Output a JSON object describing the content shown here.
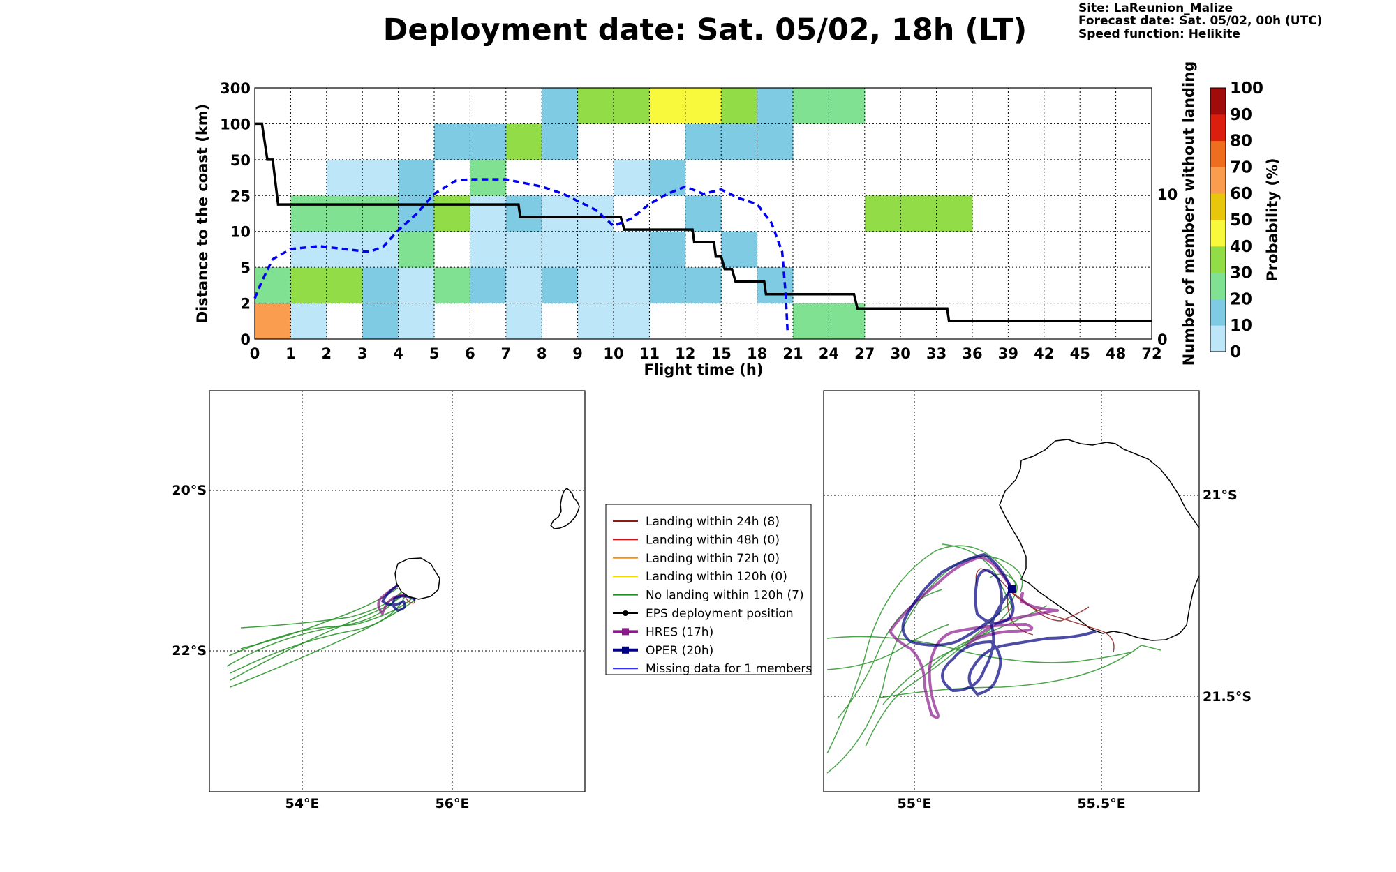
{
  "title": "Deployment date: Sat. 05/02, 18h (LT)",
  "info": {
    "site": "Site: LaReunion_Malize",
    "forecast": "Forecast date: Sat. 05/02, 00h (UTC)",
    "speed": "Speed function: Helikite"
  },
  "colors": {
    "bins": [
      "#bde6f8",
      "#7fcbe4",
      "#80e193",
      "#92dc47",
      "#f8f83c",
      "#e8c60b",
      "#fb9d4f",
      "#ee6d1e",
      "#dc1e0f",
      "#a00c0c",
      "#6b0016"
    ],
    "median_line": "#000000",
    "members_line": "#0000ee",
    "landing_24h": "#8b1a1a",
    "landing_48h": "#ff0000",
    "landing_72h": "#ff8c00",
    "landing_120h": "#ffd700",
    "no_landing": "#1f8f1f",
    "hres": "#8b1a8b",
    "oper": "#000080",
    "missing": "#3333ff"
  },
  "chart_data": [
    {
      "type": "heatmap",
      "xlabel": "Flight time (h)",
      "ylabel": "Distance to the coast (km)",
      "y2label": "Number of members without landing",
      "colorbar_label": "Probability (%)",
      "x_ticks": [
        "0",
        "1",
        "2",
        "3",
        "4",
        "5",
        "6",
        "7",
        "8",
        "9",
        "10",
        "11",
        "12",
        "15",
        "18",
        "21",
        "24",
        "27",
        "30",
        "33",
        "36",
        "39",
        "42",
        "45",
        "48",
        "72"
      ],
      "y_ticks": [
        "0",
        "2",
        "5",
        "10",
        "25",
        "50",
        "100",
        "300"
      ],
      "y2_ticks": [
        "0",
        "10"
      ],
      "y2lim": [
        0,
        17.3
      ],
      "colorbar_ticks": [
        "0",
        "10",
        "20",
        "30",
        "40",
        "50",
        "60",
        "70",
        "80",
        "90",
        "100"
      ],
      "grid": true,
      "cells": [
        {
          "col": 0,
          "row": 0,
          "value": 60
        },
        {
          "col": 1,
          "row": 0,
          "value": 5
        },
        {
          "col": 3,
          "row": 0,
          "value": 12
        },
        {
          "col": 4,
          "row": 0,
          "value": 5
        },
        {
          "col": 7,
          "row": 0,
          "value": 5
        },
        {
          "col": 9,
          "row": 0,
          "value": 5
        },
        {
          "col": 10,
          "row": 0,
          "value": 5
        },
        {
          "col": 15,
          "row": 0,
          "value": 25
        },
        {
          "col": 16,
          "row": 0,
          "value": 25
        },
        {
          "col": 0,
          "row": 1,
          "value": 25
        },
        {
          "col": 1,
          "row": 1,
          "value": 35
        },
        {
          "col": 2,
          "row": 1,
          "value": 35
        },
        {
          "col": 3,
          "row": 1,
          "value": 12
        },
        {
          "col": 4,
          "row": 1,
          "value": 5
        },
        {
          "col": 5,
          "row": 1,
          "value": 25
        },
        {
          "col": 6,
          "row": 1,
          "value": 12
        },
        {
          "col": 7,
          "row": 1,
          "value": 5
        },
        {
          "col": 8,
          "row": 1,
          "value": 12
        },
        {
          "col": 9,
          "row": 1,
          "value": 5
        },
        {
          "col": 10,
          "row": 1,
          "value": 5
        },
        {
          "col": 11,
          "row": 1,
          "value": 12
        },
        {
          "col": 12,
          "row": 1,
          "value": 12
        },
        {
          "col": 14,
          "row": 1,
          "value": 12
        },
        {
          "col": 1,
          "row": 2,
          "value": 5
        },
        {
          "col": 2,
          "row": 2,
          "value": 5
        },
        {
          "col": 3,
          "row": 2,
          "value": 5
        },
        {
          "col": 4,
          "row": 2,
          "value": 25
        },
        {
          "col": 6,
          "row": 2,
          "value": 5
        },
        {
          "col": 7,
          "row": 2,
          "value": 5
        },
        {
          "col": 8,
          "row": 2,
          "value": 5
        },
        {
          "col": 9,
          "row": 2,
          "value": 5
        },
        {
          "col": 10,
          "row": 2,
          "value": 5
        },
        {
          "col": 11,
          "row": 2,
          "value": 12
        },
        {
          "col": 13,
          "row": 2,
          "value": 12
        },
        {
          "col": 1,
          "row": 3,
          "value": 25
        },
        {
          "col": 2,
          "row": 3,
          "value": 25
        },
        {
          "col": 3,
          "row": 3,
          "value": 25
        },
        {
          "col": 4,
          "row": 3,
          "value": 12
        },
        {
          "col": 5,
          "row": 3,
          "value": 35
        },
        {
          "col": 6,
          "row": 3,
          "value": 5
        },
        {
          "col": 7,
          "row": 3,
          "value": 12
        },
        {
          "col": 8,
          "row": 3,
          "value": 5
        },
        {
          "col": 9,
          "row": 3,
          "value": 5
        },
        {
          "col": 12,
          "row": 3,
          "value": 12
        },
        {
          "col": 17,
          "row": 3,
          "value": 35
        },
        {
          "col": 18,
          "row": 3,
          "value": 35
        },
        {
          "col": 19,
          "row": 3,
          "value": 35
        },
        {
          "col": 2,
          "row": 4,
          "value": 5
        },
        {
          "col": 3,
          "row": 4,
          "value": 5
        },
        {
          "col": 4,
          "row": 4,
          "value": 12
        },
        {
          "col": 6,
          "row": 4,
          "value": 25
        },
        {
          "col": 10,
          "row": 4,
          "value": 5
        },
        {
          "col": 11,
          "row": 4,
          "value": 12
        },
        {
          "col": 5,
          "row": 5,
          "value": 12
        },
        {
          "col": 6,
          "row": 5,
          "value": 12
        },
        {
          "col": 7,
          "row": 5,
          "value": 35
        },
        {
          "col": 8,
          "row": 5,
          "value": 12
        },
        {
          "col": 12,
          "row": 5,
          "value": 12
        },
        {
          "col": 13,
          "row": 5,
          "value": 12
        },
        {
          "col": 14,
          "row": 5,
          "value": 12
        },
        {
          "col": 8,
          "row": 6,
          "value": 12
        },
        {
          "col": 9,
          "row": 6,
          "value": 35
        },
        {
          "col": 10,
          "row": 6,
          "value": 35
        },
        {
          "col": 11,
          "row": 6,
          "value": 45
        },
        {
          "col": 12,
          "row": 6,
          "value": 45
        },
        {
          "col": 13,
          "row": 6,
          "value": 35
        },
        {
          "col": 14,
          "row": 6,
          "value": 12
        },
        {
          "col": 15,
          "row": 6,
          "value": 25
        },
        {
          "col": 16,
          "row": 6,
          "value": 25
        }
      ],
      "median_distance_line": [
        [
          0,
          6.0
        ],
        [
          0.2,
          6.0
        ],
        [
          0.35,
          5.0
        ],
        [
          0.5,
          5.0
        ],
        [
          0.65,
          3.75
        ],
        [
          7.35,
          3.75
        ],
        [
          7.4,
          3.4
        ],
        [
          10.2,
          3.4
        ],
        [
          10.3,
          3.05
        ],
        [
          12.2,
          3.05
        ],
        [
          12.25,
          2.7
        ],
        [
          12.8,
          2.7
        ],
        [
          12.85,
          2.3
        ],
        [
          13.0,
          2.3
        ],
        [
          13.1,
          1.95
        ],
        [
          13.3,
          1.95
        ],
        [
          13.4,
          1.6
        ],
        [
          14.2,
          1.6
        ],
        [
          14.25,
          1.25
        ],
        [
          16.7,
          1.25
        ],
        [
          16.8,
          0.85
        ],
        [
          19.3,
          0.85
        ],
        [
          19.35,
          0.5
        ],
        [
          25.0,
          0.5
        ]
      ],
      "members_without_landing": [
        [
          0,
          2.8
        ],
        [
          0.2,
          4.0
        ],
        [
          0.5,
          5.5
        ],
        [
          1.0,
          6.2
        ],
        [
          1.8,
          6.4
        ],
        [
          2.5,
          6.2
        ],
        [
          3.2,
          6.0
        ],
        [
          3.6,
          6.4
        ],
        [
          4.0,
          7.5
        ],
        [
          4.5,
          8.6
        ],
        [
          5.0,
          10.0
        ],
        [
          5.6,
          10.9
        ],
        [
          6.0,
          11.0
        ],
        [
          7.0,
          11.0
        ],
        [
          8.0,
          10.5
        ],
        [
          8.6,
          10.0
        ],
        [
          9.5,
          8.9
        ],
        [
          10.0,
          7.8
        ],
        [
          10.5,
          8.3
        ],
        [
          11.0,
          9.3
        ],
        [
          11.5,
          10.0
        ],
        [
          12.0,
          10.5
        ],
        [
          12.5,
          10.0
        ],
        [
          13.0,
          10.3
        ],
        [
          13.5,
          9.7
        ],
        [
          14.0,
          9.3
        ],
        [
          14.4,
          8.0
        ],
        [
          14.7,
          6.0
        ],
        [
          14.8,
          3.0
        ],
        [
          14.85,
          0.5
        ]
      ]
    },
    {
      "type": "map",
      "lat_ticks": [
        "20°S",
        "22°S"
      ],
      "lon_ticks": [
        "54°E",
        "56°E"
      ]
    },
    {
      "type": "map",
      "lat_ticks": [
        "21°S",
        "21.5°S"
      ],
      "lon_ticks": [
        "55°E",
        "55.5°E"
      ]
    }
  ],
  "legend": [
    {
      "label": "Landing within 24h (8)",
      "color": "#8b1a1a",
      "style": "line"
    },
    {
      "label": "Landing within 48h (0)",
      "color": "#ff0000",
      "style": "line"
    },
    {
      "label": "Landing within 72h (0)",
      "color": "#ff8c00",
      "style": "line"
    },
    {
      "label": "Landing within 120h (0)",
      "color": "#ffd700",
      "style": "line"
    },
    {
      "label": "No landing within 120h (7)",
      "color": "#1f8f1f",
      "style": "line"
    },
    {
      "label": "EPS deployment position",
      "color": "#000000",
      "style": "dot"
    },
    {
      "label": "HRES (17h)",
      "color": "#8b1a8b",
      "style": "square-thick"
    },
    {
      "label": "OPER (20h)",
      "color": "#000080",
      "style": "square-thick"
    },
    {
      "label": "Missing data for 1 members",
      "color": "#3333ff",
      "style": "line"
    }
  ]
}
